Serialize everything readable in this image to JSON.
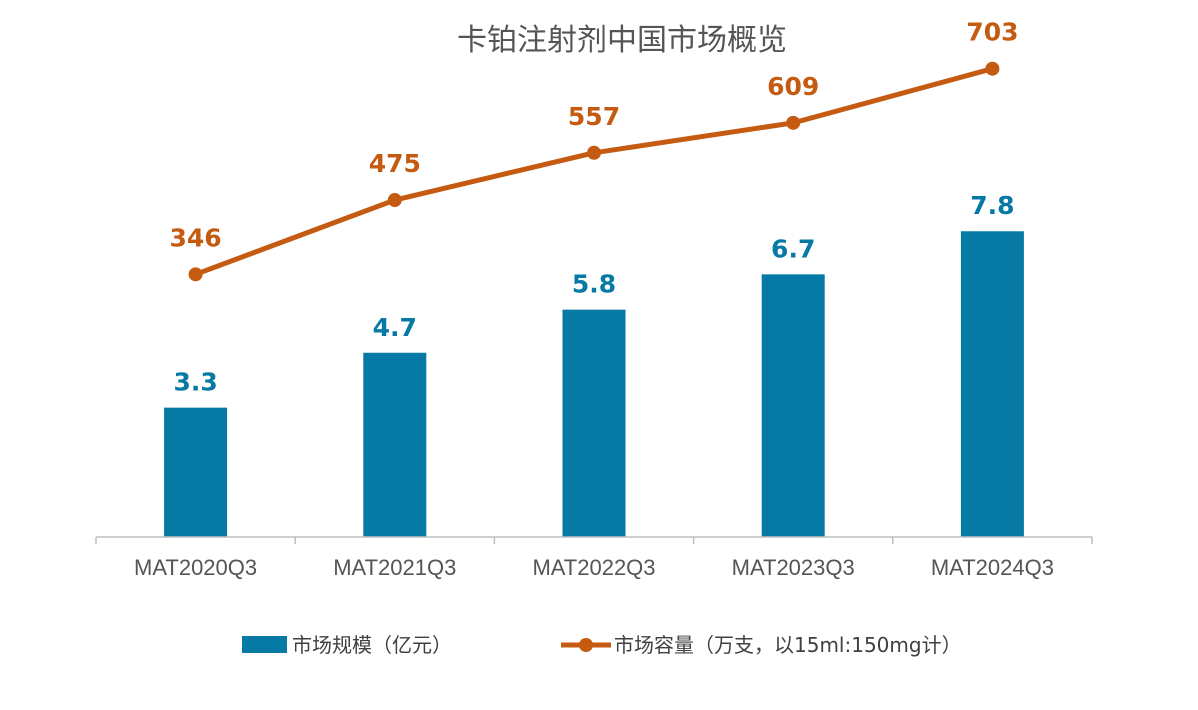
{
  "chart_data": {
    "type": "bar",
    "title": "卡铂注射剂中国市场概览",
    "categories": [
      "MAT2020Q3",
      "MAT2021Q3",
      "MAT2022Q3",
      "MAT2023Q3",
      "MAT2024Q3"
    ],
    "series": [
      {
        "name": "市场规模（亿元）",
        "type": "bar",
        "axis": "left",
        "color": "#0779A5",
        "values": [
          3.3,
          4.7,
          5.8,
          6.7,
          7.8
        ],
        "labels": [
          "3.3",
          "4.7",
          "5.8",
          "6.7",
          "7.8"
        ]
      },
      {
        "name": "市场容量（万支，以15ml:150mg计）",
        "type": "line",
        "axis": "right",
        "color": "#C55A11",
        "values": [
          346,
          475,
          557,
          609,
          703
        ],
        "labels": [
          "346",
          "475",
          "557",
          "609",
          "703"
        ]
      }
    ],
    "xlabel": "",
    "ylabel": "",
    "ylim_left": [
      0,
      10
    ],
    "ylim_right": [
      -110,
      885
    ],
    "grid": false,
    "legend_position": "bottom",
    "axis_color": "#BFBFBF"
  }
}
